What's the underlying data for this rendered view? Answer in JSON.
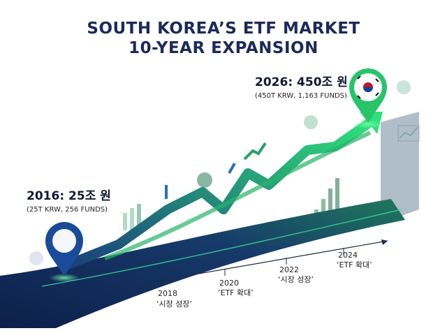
{
  "header": {
    "title_lines": [
      "SOUTH KOREA’S ETF MARKET",
      "10-YEAR EXPANSION"
    ]
  },
  "start": {
    "label": "2016: 25조 원",
    "detail": "(25T KRW, 256 FUNDS)"
  },
  "end": {
    "label": "2026: 450조 원",
    "detail": "(450T KRW, 1,163 FUNDS)"
  },
  "milestones": [
    {
      "year": "2018",
      "note": "‘시장 성장’"
    },
    {
      "year": "2020",
      "note": "‘ETF 확대’"
    },
    {
      "year": "2022",
      "note": "‘시장 성장’"
    },
    {
      "year": "2024",
      "note": "‘ETF 확대’"
    }
  ]
}
